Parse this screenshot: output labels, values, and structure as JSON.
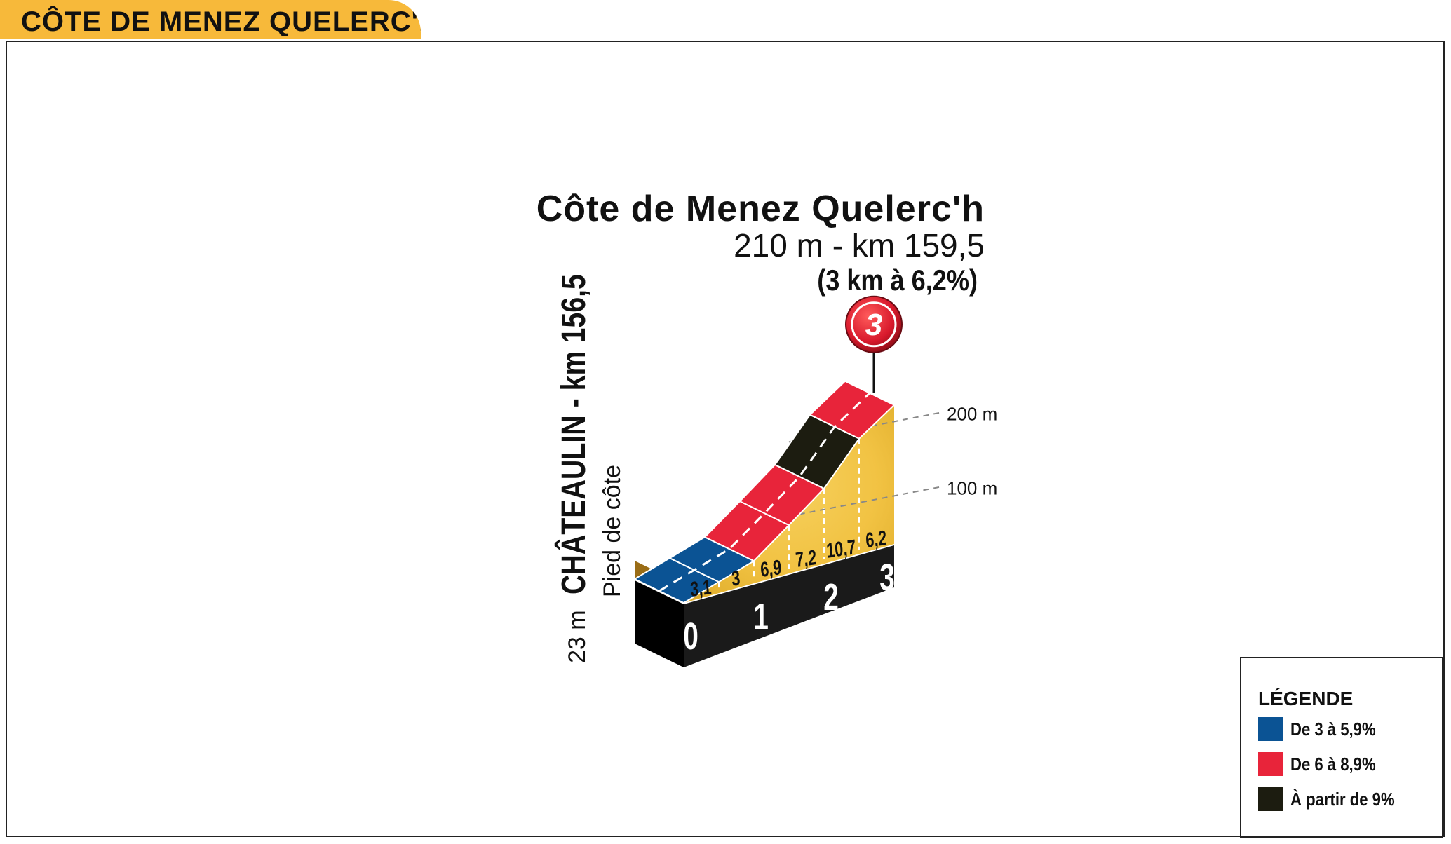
{
  "header": {
    "tab_title": "CÔTE DE MENEZ QUELERC'H"
  },
  "climb": {
    "name": "Côte de Menez Quelerc'h",
    "summit": "210 m - km 159,5",
    "stats": "(3 km à 6,2%)",
    "category": "3",
    "start_place": "CHÂTEAULIN - km 156,5",
    "start_note": "Pied de côte",
    "start_altitude": "23 m"
  },
  "legend": {
    "title": "LÉGENDE",
    "items": [
      {
        "label": "De 3 à 5,9%",
        "color": "#0b5394"
      },
      {
        "label": "De 6 à 8,9%",
        "color": "#e8243a"
      },
      {
        "label": "À partir de 9%",
        "color": "#1c1c10"
      }
    ]
  },
  "colors": {
    "tab": "#f7b93a",
    "ground": "#f3c64a",
    "base": "#1a1a1a",
    "badge": "#d8192c"
  },
  "chart_data": {
    "type": "area",
    "title": "Côte de Menez Quelerc'h",
    "xlabel": "",
    "ylabel": "",
    "x_unit": "km",
    "y_unit": "m",
    "x_ticks": [
      "0",
      "1",
      "2",
      "3"
    ],
    "y_ticks": [
      "100 m",
      "200 m"
    ],
    "xlim": [
      0,
      3
    ],
    "ylim": [
      0,
      220
    ],
    "segments": [
      {
        "from_km": 0.0,
        "to_km": 0.5,
        "gradient": "3,1",
        "color": "#0b5394"
      },
      {
        "from_km": 0.5,
        "to_km": 1.0,
        "gradient": "3",
        "color": "#0b5394"
      },
      {
        "from_km": 1.0,
        "to_km": 1.5,
        "gradient": "6,9",
        "color": "#e8243a"
      },
      {
        "from_km": 1.5,
        "to_km": 2.0,
        "gradient": "7,2",
        "color": "#e8243a"
      },
      {
        "from_km": 2.0,
        "to_km": 2.5,
        "gradient": "10,7",
        "color": "#1c1c10"
      },
      {
        "from_km": 2.5,
        "to_km": 3.0,
        "gradient": "6,2",
        "color": "#e8243a"
      }
    ],
    "profile": [
      {
        "km": 0.0,
        "alt": 23
      },
      {
        "km": 0.5,
        "alt": 38
      },
      {
        "km": 1.0,
        "alt": 53
      },
      {
        "km": 1.5,
        "alt": 88
      },
      {
        "km": 2.0,
        "alt": 124
      },
      {
        "km": 2.5,
        "alt": 178
      },
      {
        "km": 3.0,
        "alt": 210
      }
    ]
  }
}
